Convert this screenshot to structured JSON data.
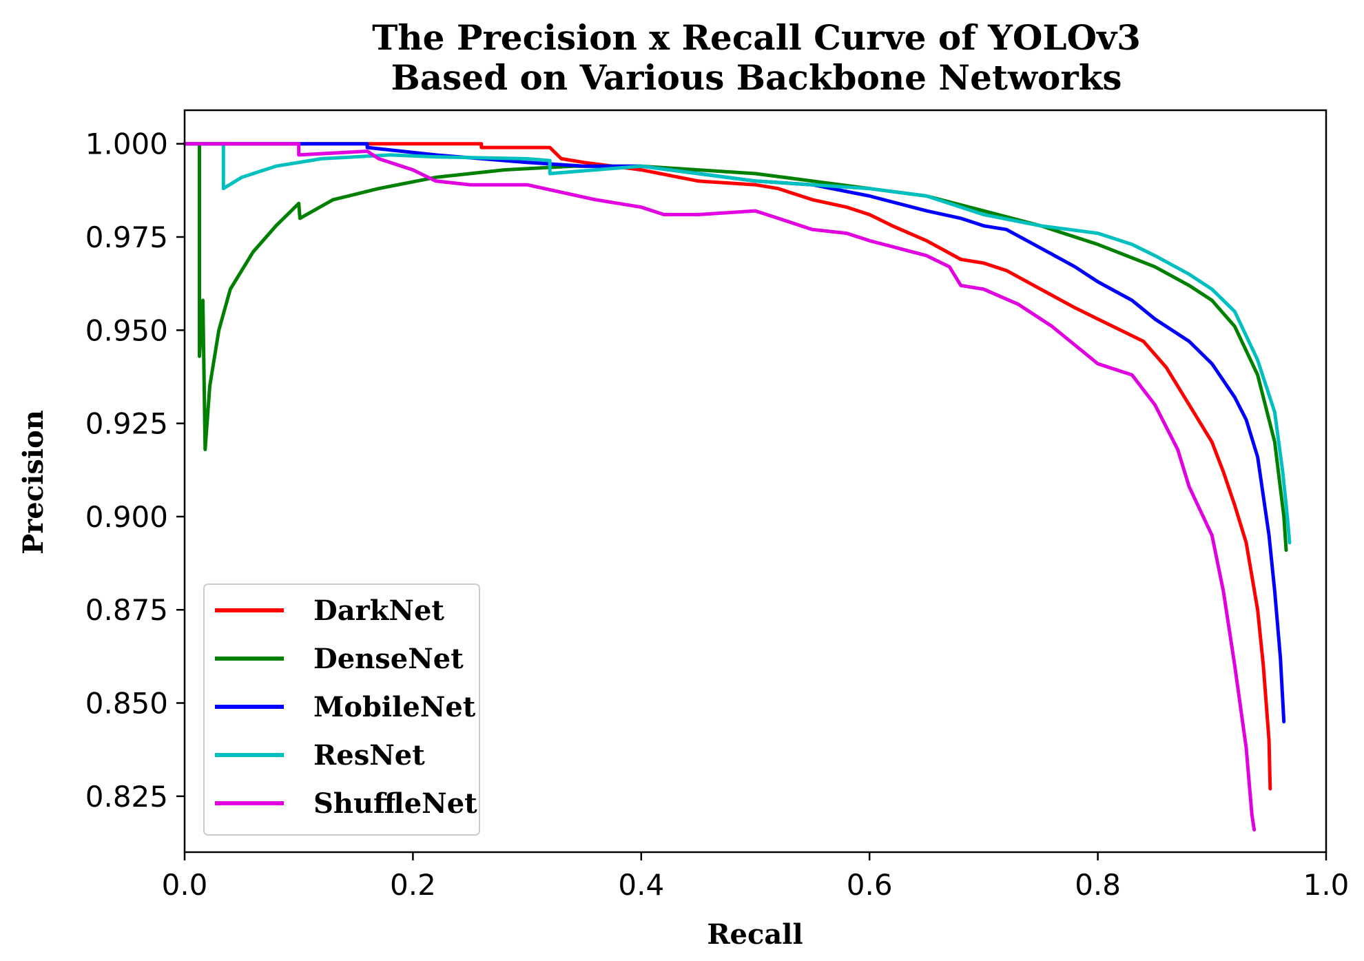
{
  "chart_data": {
    "type": "line",
    "title": "The Precision x Recall Curve of YOLOv3",
    "subtitle": "Based on Various Backbone Networks",
    "xlabel": "Recall",
    "ylabel": "Precision",
    "xlim": [
      0.0,
      1.0
    ],
    "ylim": [
      0.81,
      1.009
    ],
    "xticks": [
      "0.0",
      "0.2",
      "0.4",
      "0.6",
      "0.8",
      "1.0"
    ],
    "yticks": [
      "1.000",
      "0.975",
      "0.950",
      "0.925",
      "0.900",
      "0.875",
      "0.850",
      "0.825"
    ],
    "legend_position": "lower-left",
    "series": [
      {
        "name": "DarkNet",
        "color": "#ff0000",
        "points": [
          [
            0.0,
            1.0
          ],
          [
            0.26,
            1.0
          ],
          [
            0.26,
            0.999
          ],
          [
            0.32,
            0.999
          ],
          [
            0.33,
            0.996
          ],
          [
            0.35,
            0.995
          ],
          [
            0.4,
            0.993
          ],
          [
            0.45,
            0.99
          ],
          [
            0.5,
            0.989
          ],
          [
            0.52,
            0.988
          ],
          [
            0.55,
            0.985
          ],
          [
            0.58,
            0.983
          ],
          [
            0.6,
            0.981
          ],
          [
            0.62,
            0.978
          ],
          [
            0.65,
            0.974
          ],
          [
            0.68,
            0.969
          ],
          [
            0.7,
            0.968
          ],
          [
            0.72,
            0.966
          ],
          [
            0.75,
            0.961
          ],
          [
            0.78,
            0.956
          ],
          [
            0.8,
            0.953
          ],
          [
            0.82,
            0.95
          ],
          [
            0.84,
            0.947
          ],
          [
            0.86,
            0.94
          ],
          [
            0.88,
            0.93
          ],
          [
            0.9,
            0.92
          ],
          [
            0.91,
            0.912
          ],
          [
            0.92,
            0.903
          ],
          [
            0.93,
            0.893
          ],
          [
            0.94,
            0.875
          ],
          [
            0.945,
            0.86
          ],
          [
            0.95,
            0.84
          ],
          [
            0.951,
            0.827
          ]
        ]
      },
      {
        "name": "DenseNet",
        "color": "#008000",
        "points": [
          [
            0.0,
            1.0
          ],
          [
            0.013,
            1.0
          ],
          [
            0.013,
            0.943
          ],
          [
            0.016,
            0.958
          ],
          [
            0.018,
            0.918
          ],
          [
            0.022,
            0.935
          ],
          [
            0.03,
            0.95
          ],
          [
            0.04,
            0.961
          ],
          [
            0.06,
            0.971
          ],
          [
            0.08,
            0.978
          ],
          [
            0.1,
            0.984
          ],
          [
            0.101,
            0.98
          ],
          [
            0.13,
            0.985
          ],
          [
            0.17,
            0.988
          ],
          [
            0.22,
            0.991
          ],
          [
            0.28,
            0.993
          ],
          [
            0.34,
            0.994
          ],
          [
            0.4,
            0.994
          ],
          [
            0.45,
            0.993
          ],
          [
            0.5,
            0.992
          ],
          [
            0.55,
            0.99
          ],
          [
            0.6,
            0.988
          ],
          [
            0.65,
            0.986
          ],
          [
            0.7,
            0.982
          ],
          [
            0.75,
            0.978
          ],
          [
            0.8,
            0.973
          ],
          [
            0.85,
            0.967
          ],
          [
            0.88,
            0.962
          ],
          [
            0.9,
            0.958
          ],
          [
            0.92,
            0.951
          ],
          [
            0.94,
            0.938
          ],
          [
            0.955,
            0.92
          ],
          [
            0.963,
            0.9
          ],
          [
            0.965,
            0.891
          ]
        ]
      },
      {
        "name": "MobileNet",
        "color": "#0000ff",
        "points": [
          [
            0.0,
            1.0
          ],
          [
            0.16,
            1.0
          ],
          [
            0.16,
            0.999
          ],
          [
            0.22,
            0.997
          ],
          [
            0.3,
            0.995
          ],
          [
            0.35,
            0.994
          ],
          [
            0.4,
            0.994
          ],
          [
            0.45,
            0.992
          ],
          [
            0.5,
            0.99
          ],
          [
            0.55,
            0.989
          ],
          [
            0.6,
            0.986
          ],
          [
            0.65,
            0.982
          ],
          [
            0.68,
            0.98
          ],
          [
            0.7,
            0.978
          ],
          [
            0.72,
            0.977
          ],
          [
            0.75,
            0.972
          ],
          [
            0.78,
            0.967
          ],
          [
            0.8,
            0.963
          ],
          [
            0.83,
            0.958
          ],
          [
            0.85,
            0.953
          ],
          [
            0.88,
            0.947
          ],
          [
            0.9,
            0.941
          ],
          [
            0.92,
            0.932
          ],
          [
            0.93,
            0.926
          ],
          [
            0.94,
            0.916
          ],
          [
            0.95,
            0.895
          ],
          [
            0.955,
            0.88
          ],
          [
            0.96,
            0.862
          ],
          [
            0.963,
            0.845
          ]
        ]
      },
      {
        "name": "ResNet",
        "color": "#00bfbf",
        "points": [
          [
            0.0,
            1.0
          ],
          [
            0.034,
            1.0
          ],
          [
            0.034,
            0.988
          ],
          [
            0.05,
            0.991
          ],
          [
            0.08,
            0.994
          ],
          [
            0.12,
            0.996
          ],
          [
            0.18,
            0.997
          ],
          [
            0.22,
            0.9965
          ],
          [
            0.3,
            0.996
          ],
          [
            0.32,
            0.9955
          ],
          [
            0.32,
            0.992
          ],
          [
            0.4,
            0.994
          ],
          [
            0.45,
            0.992
          ],
          [
            0.5,
            0.99
          ],
          [
            0.55,
            0.989
          ],
          [
            0.6,
            0.988
          ],
          [
            0.65,
            0.986
          ],
          [
            0.7,
            0.981
          ],
          [
            0.75,
            0.978
          ],
          [
            0.8,
            0.976
          ],
          [
            0.83,
            0.973
          ],
          [
            0.85,
            0.97
          ],
          [
            0.88,
            0.965
          ],
          [
            0.9,
            0.961
          ],
          [
            0.92,
            0.955
          ],
          [
            0.94,
            0.942
          ],
          [
            0.955,
            0.928
          ],
          [
            0.962,
            0.912
          ],
          [
            0.966,
            0.9
          ],
          [
            0.968,
            0.893
          ]
        ]
      },
      {
        "name": "ShuffleNet",
        "color": "#e000e0",
        "points": [
          [
            0.0,
            1.0
          ],
          [
            0.1,
            1.0
          ],
          [
            0.1,
            0.997
          ],
          [
            0.16,
            0.998
          ],
          [
            0.17,
            0.996
          ],
          [
            0.2,
            0.993
          ],
          [
            0.22,
            0.99
          ],
          [
            0.25,
            0.989
          ],
          [
            0.3,
            0.989
          ],
          [
            0.33,
            0.987
          ],
          [
            0.36,
            0.985
          ],
          [
            0.4,
            0.983
          ],
          [
            0.42,
            0.981
          ],
          [
            0.45,
            0.981
          ],
          [
            0.5,
            0.982
          ],
          [
            0.52,
            0.98
          ],
          [
            0.55,
            0.977
          ],
          [
            0.58,
            0.976
          ],
          [
            0.6,
            0.974
          ],
          [
            0.65,
            0.97
          ],
          [
            0.67,
            0.967
          ],
          [
            0.68,
            0.962
          ],
          [
            0.7,
            0.961
          ],
          [
            0.73,
            0.957
          ],
          [
            0.76,
            0.951
          ],
          [
            0.78,
            0.946
          ],
          [
            0.8,
            0.941
          ],
          [
            0.83,
            0.938
          ],
          [
            0.85,
            0.93
          ],
          [
            0.87,
            0.918
          ],
          [
            0.88,
            0.908
          ],
          [
            0.9,
            0.895
          ],
          [
            0.91,
            0.88
          ],
          [
            0.92,
            0.86
          ],
          [
            0.93,
            0.838
          ],
          [
            0.935,
            0.82
          ],
          [
            0.937,
            0.816
          ]
        ]
      }
    ]
  }
}
